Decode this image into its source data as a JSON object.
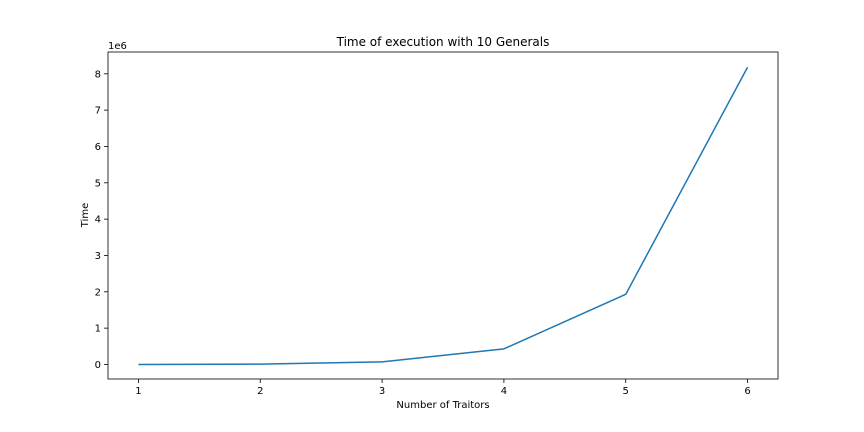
{
  "chart_data": {
    "type": "line",
    "title": "Time of execution with 10 Generals",
    "xlabel": "Number of Traitors",
    "ylabel": "Time",
    "y_offset_label": "1e6",
    "x_ticks": [
      "1",
      "2",
      "3",
      "4",
      "5",
      "6"
    ],
    "y_ticks": [
      "0",
      "1",
      "2",
      "3",
      "4",
      "5",
      "6",
      "7",
      "8"
    ],
    "xlim": [
      0.75,
      6.25
    ],
    "ylim": [
      -0.4,
      8.6
    ],
    "grid": false,
    "series": [
      {
        "color": "#1f77b4",
        "x": [
          1,
          2,
          3,
          4,
          5,
          6
        ],
        "y": [
          0.0,
          0.01,
          0.07,
          0.43,
          1.93,
          8.18
        ]
      }
    ]
  }
}
